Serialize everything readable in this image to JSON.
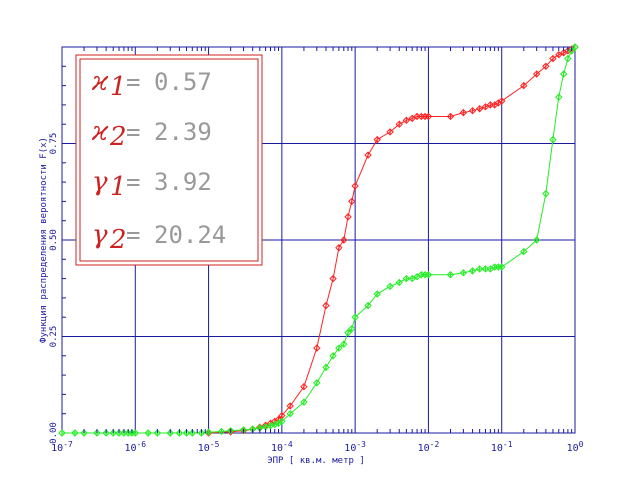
{
  "chart_data": {
    "type": "line",
    "xscale": "log",
    "xlim": [
      1e-07,
      1
    ],
    "ylim": [
      0,
      1
    ],
    "grid": true,
    "xlabel": "ЭПР [ кв.м.  метр ]",
    "ylabel": "Функция распределения вероятности  F(x)",
    "xticks": [
      {
        "value": 1e-07,
        "base": "10",
        "exp": "-7"
      },
      {
        "value": 1e-06,
        "base": "10",
        "exp": "-6"
      },
      {
        "value": 1e-05,
        "base": "10",
        "exp": "-5"
      },
      {
        "value": 0.0001,
        "base": "10",
        "exp": "-4"
      },
      {
        "value": 0.001,
        "base": "10",
        "exp": "-3"
      },
      {
        "value": 0.01,
        "base": "10",
        "exp": "-2"
      },
      {
        "value": 0.1,
        "base": "10",
        "exp": "-1"
      },
      {
        "value": 1,
        "base": "10",
        "exp": "0"
      }
    ],
    "yticks": [
      {
        "value": 0,
        "label": "0.00"
      },
      {
        "value": 0.25,
        "label": "0.25"
      },
      {
        "value": 0.5,
        "label": "0.50"
      },
      {
        "value": 0.75,
        "label": "0.75"
      }
    ],
    "series": [
      {
        "color": "#ff2222",
        "x": [
          1e-05,
          2e-05,
          3e-05,
          4e-05,
          5e-05,
          6e-05,
          7e-05,
          8e-05,
          9e-05,
          0.0001,
          0.00013,
          0.0002,
          0.0003,
          0.0004,
          0.0005,
          0.0006,
          0.0007,
          0.0008,
          0.0009,
          0.001,
          0.0015,
          0.002,
          0.003,
          0.004,
          0.005,
          0.006,
          0.007,
          0.008,
          0.009,
          0.01,
          0.02,
          0.03,
          0.04,
          0.05,
          0.06,
          0.07,
          0.08,
          0.09,
          0.1,
          0.2,
          0.3,
          0.4,
          0.5,
          0.6,
          0.7,
          0.8,
          0.9,
          1
        ],
        "y": [
          0.0,
          0.003,
          0.006,
          0.01,
          0.015,
          0.02,
          0.025,
          0.03,
          0.035,
          0.045,
          0.07,
          0.12,
          0.22,
          0.33,
          0.4,
          0.48,
          0.5,
          0.56,
          0.6,
          0.64,
          0.72,
          0.76,
          0.78,
          0.8,
          0.81,
          0.815,
          0.82,
          0.82,
          0.82,
          0.82,
          0.82,
          0.83,
          0.835,
          0.84,
          0.845,
          0.85,
          0.85,
          0.855,
          0.86,
          0.9,
          0.93,
          0.95,
          0.97,
          0.98,
          0.985,
          0.99,
          0.995,
          1.0
        ]
      },
      {
        "color": "#22ee22",
        "x": [
          1e-07,
          1.5e-07,
          2e-07,
          3e-07,
          4e-07,
          5e-07,
          6e-07,
          7e-07,
          8e-07,
          9e-07,
          1e-06,
          1.5e-06,
          2e-06,
          3e-06,
          4e-06,
          5e-06,
          6e-06,
          8e-06,
          1e-05,
          1.5e-05,
          2e-05,
          3e-05,
          4e-05,
          5e-05,
          6e-05,
          7e-05,
          8e-05,
          9e-05,
          0.0001,
          0.00013,
          0.0002,
          0.0003,
          0.0004,
          0.0005,
          0.0006,
          0.0007,
          0.0008,
          0.0009,
          0.001,
          0.0015,
          0.002,
          0.003,
          0.004,
          0.005,
          0.006,
          0.007,
          0.008,
          0.009,
          0.01,
          0.02,
          0.03,
          0.04,
          0.05,
          0.06,
          0.07,
          0.08,
          0.09,
          0.1,
          0.2,
          0.3,
          0.4,
          0.5,
          0.6,
          0.7,
          0.8,
          0.9,
          1
        ],
        "y": [
          0,
          0,
          0,
          0,
          0,
          0,
          0,
          0,
          0,
          0,
          0,
          0,
          0,
          0,
          0,
          0,
          0,
          0,
          0.002,
          0.004,
          0.006,
          0.008,
          0.01,
          0.013,
          0.016,
          0.019,
          0.022,
          0.025,
          0.03,
          0.05,
          0.08,
          0.13,
          0.17,
          0.2,
          0.22,
          0.23,
          0.26,
          0.27,
          0.3,
          0.33,
          0.36,
          0.38,
          0.39,
          0.4,
          0.4,
          0.405,
          0.41,
          0.41,
          0.41,
          0.41,
          0.415,
          0.42,
          0.425,
          0.425,
          0.425,
          0.43,
          0.43,
          0.43,
          0.47,
          0.5,
          0.62,
          0.76,
          0.87,
          0.93,
          0.97,
          0.99,
          1.0
        ]
      }
    ],
    "annotations": [
      {
        "name": "ϰ",
        "sub": "1",
        "eq": "=",
        "value": "0.57"
      },
      {
        "name": "ϰ",
        "sub": "2",
        "eq": "=",
        "value": "2.39"
      },
      {
        "name": "γ",
        "sub": "1",
        "eq": "=",
        "value": "3.92"
      },
      {
        "name": "γ",
        "sub": "2",
        "eq": "=",
        "value": "20.24"
      }
    ]
  }
}
